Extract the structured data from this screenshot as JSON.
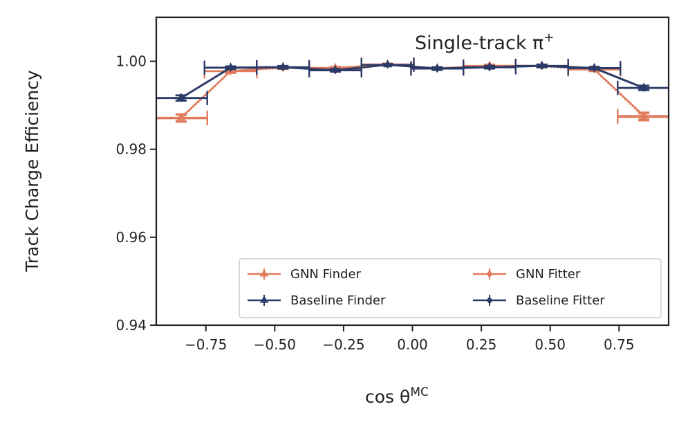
{
  "chart_data": {
    "type": "line",
    "title": "",
    "annotation": "Single-track π",
    "annotation_sup": "+",
    "xlabel": "cos θ",
    "xlabel_sup": "MC",
    "ylabel": "Track Charge Efficiency",
    "xlim": [
      -0.93,
      0.93
    ],
    "ylim": [
      0.94,
      1.01
    ],
    "x_ticks": [
      -0.75,
      -0.5,
      -0.25,
      0.0,
      0.25,
      0.5,
      0.75
    ],
    "x_tick_labels": [
      "−0.75",
      "−0.50",
      "−0.25",
      "0.00",
      "0.25",
      "0.50",
      "0.75"
    ],
    "y_ticks": [
      0.94,
      0.96,
      0.98,
      1.0
    ],
    "y_tick_labels": [
      "0.94",
      "0.96",
      "0.98",
      "1.00"
    ],
    "legend_position": "lower-right",
    "series": [
      {
        "name": "GNN Finder",
        "color": "#e07b5c",
        "line_style": "solid",
        "marker": "star",
        "x": [
          -0.84,
          -0.66,
          -0.47,
          -0.28,
          -0.09,
          0.09,
          0.28,
          0.47,
          0.66,
          0.84
        ],
        "y": [
          0.9872,
          0.9978,
          0.9986,
          0.9985,
          0.9993,
          0.9984,
          0.999,
          0.999,
          0.9982,
          0.9876
        ],
        "xerr": [
          0.095,
          0.095,
          0.095,
          0.095,
          0.095,
          0.095,
          0.095,
          0.095,
          0.095,
          0.095
        ],
        "yerr": [
          0.0008,
          0.0004,
          0.0003,
          0.0003,
          0.0002,
          0.0003,
          0.0003,
          0.0003,
          0.0004,
          0.0008
        ]
      },
      {
        "name": "GNN Fitter",
        "color": "#e07b5c",
        "line_style": "dotted",
        "marker": "diamond",
        "x": [
          -0.84,
          -0.66,
          -0.47,
          -0.28,
          -0.09,
          0.09,
          0.28,
          0.47,
          0.66,
          0.84
        ],
        "y": [
          0.987,
          0.9977,
          0.9985,
          0.9984,
          0.9993,
          0.9983,
          0.9989,
          0.9989,
          0.9981,
          0.9873
        ],
        "xerr": [
          0.095,
          0.095,
          0.095,
          0.095,
          0.095,
          0.095,
          0.095,
          0.095,
          0.095,
          0.095
        ],
        "yerr": [
          0.0008,
          0.0004,
          0.0003,
          0.0003,
          0.0002,
          0.0003,
          0.0003,
          0.0003,
          0.0004,
          0.0008
        ]
      },
      {
        "name": "Baseline Finder",
        "color": "#2b3a67",
        "line_style": "solid",
        "marker": "star",
        "x": [
          -0.84,
          -0.66,
          -0.47,
          -0.28,
          -0.09,
          0.09,
          0.28,
          0.47,
          0.66,
          0.84
        ],
        "y": [
          0.9917,
          0.9986,
          0.9987,
          0.998,
          0.9992,
          0.9984,
          0.9987,
          0.999,
          0.9985,
          0.994
        ],
        "xerr": [
          0.095,
          0.095,
          0.095,
          0.095,
          0.095,
          0.095,
          0.095,
          0.095,
          0.095,
          0.095
        ],
        "yerr": [
          0.0006,
          0.0003,
          0.0003,
          0.0003,
          0.0002,
          0.0003,
          0.0003,
          0.0003,
          0.0003,
          0.0005
        ]
      },
      {
        "name": "Baseline Fitter",
        "color": "#2b3a67",
        "line_style": "solid",
        "marker": "diamond",
        "x": [
          -0.84,
          -0.66,
          -0.47,
          -0.28,
          -0.09,
          0.09,
          0.28,
          0.47,
          0.66,
          0.84
        ],
        "y": [
          0.9916,
          0.9985,
          0.9986,
          0.9979,
          0.9992,
          0.9983,
          0.9986,
          0.9989,
          0.9984,
          0.9939
        ],
        "xerr": [
          0.095,
          0.095,
          0.095,
          0.095,
          0.095,
          0.095,
          0.095,
          0.095,
          0.095,
          0.095
        ],
        "yerr": [
          0.0006,
          0.0003,
          0.0003,
          0.0003,
          0.0002,
          0.0003,
          0.0003,
          0.0003,
          0.0003,
          0.0005
        ]
      }
    ]
  }
}
